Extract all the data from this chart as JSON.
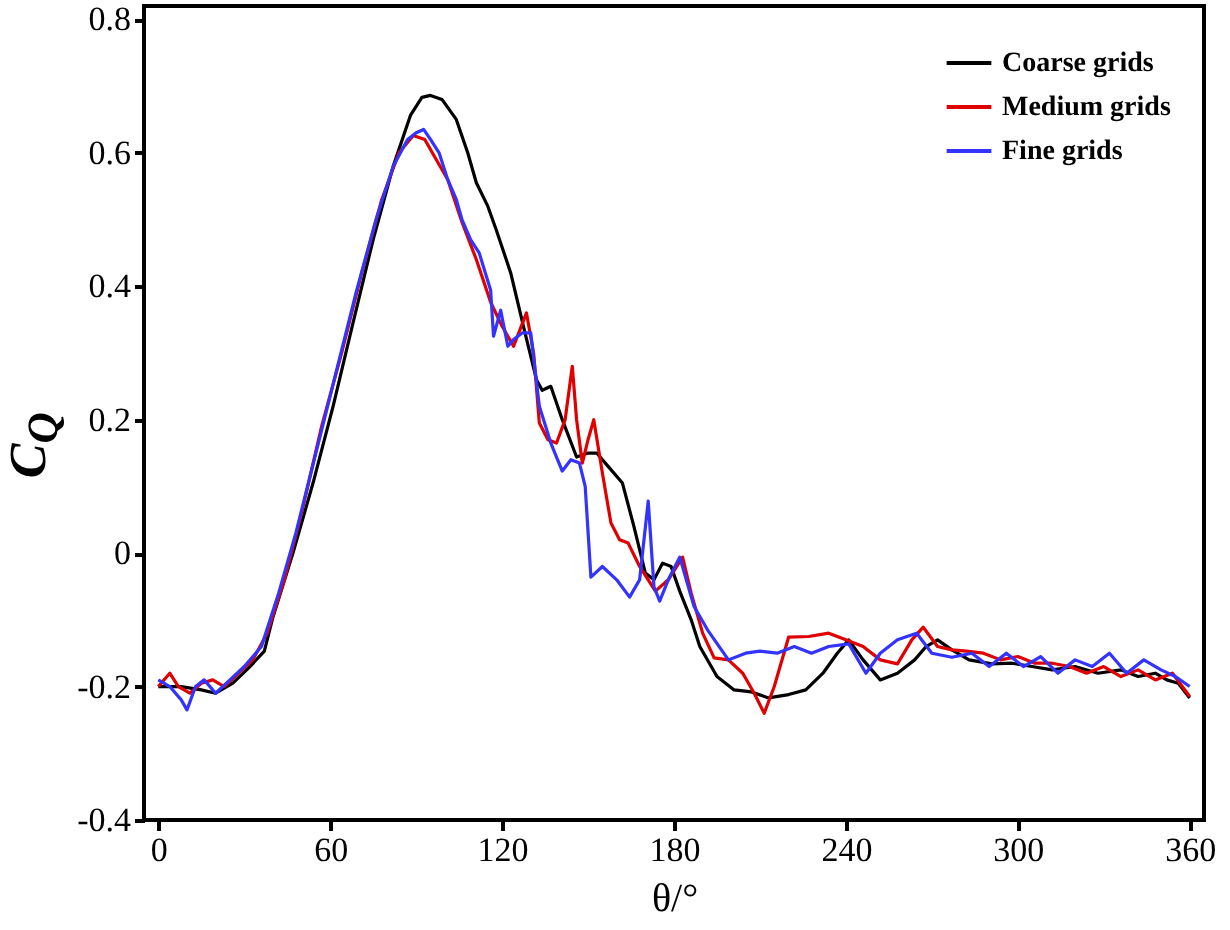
{
  "chart_data": {
    "type": "line",
    "xlabel": "θ/°",
    "ylabel": "C$_{Q}$",
    "xlim": [
      -5,
      365
    ],
    "ylim": [
      -0.4,
      0.82
    ],
    "xticks": [
      0,
      60,
      120,
      180,
      240,
      300,
      360
    ],
    "yticks": [
      -0.4,
      -0.2,
      0,
      0.2,
      0.4,
      0.6,
      0.8
    ],
    "grid": false,
    "legend": "top right",
    "series": [
      {
        "name": "Coarse grids",
        "color": "#000000",
        "x": [
          0,
          8,
          15,
          20,
          26,
          32,
          37,
          40,
          47,
          54,
          61,
          68,
          75,
          82,
          88,
          92,
          95,
          99,
          104,
          108,
          111,
          115,
          118,
          123,
          128,
          132,
          134,
          137,
          141,
          146,
          150,
          153,
          157,
          162,
          166,
          170,
          173,
          176,
          179,
          182,
          186,
          189,
          195,
          201,
          207,
          213,
          220,
          226,
          232,
          237,
          241,
          246,
          252,
          258,
          264,
          268,
          272,
          277,
          283,
          291,
          298,
          305,
          312,
          320,
          328,
          336,
          342,
          348,
          352,
          356,
          360
        ],
        "values": [
          -0.2,
          -0.2,
          -0.205,
          -0.21,
          -0.195,
          -0.17,
          -0.147,
          -0.096,
          0.0,
          0.105,
          0.22,
          0.346,
          0.47,
          0.58,
          0.656,
          0.683,
          0.686,
          0.68,
          0.65,
          0.6,
          0.555,
          0.52,
          0.484,
          0.42,
          0.33,
          0.26,
          0.244,
          0.25,
          0.2,
          0.144,
          0.15,
          0.15,
          0.13,
          0.105,
          0.04,
          -0.03,
          -0.04,
          -0.015,
          -0.02,
          -0.057,
          -0.1,
          -0.14,
          -0.185,
          -0.205,
          -0.208,
          -0.217,
          -0.212,
          -0.205,
          -0.18,
          -0.15,
          -0.13,
          -0.16,
          -0.19,
          -0.18,
          -0.16,
          -0.14,
          -0.13,
          -0.145,
          -0.16,
          -0.166,
          -0.165,
          -0.17,
          -0.175,
          -0.17,
          -0.18,
          -0.175,
          -0.185,
          -0.18,
          -0.19,
          -0.195,
          -0.217
        ]
      },
      {
        "name": "Medium grids",
        "color": "#e00000",
        "x": [
          0,
          4,
          7,
          11,
          15,
          19,
          23,
          28,
          33,
          38,
          44,
          50,
          57,
          64,
          71,
          78,
          84,
          89,
          93,
          97,
          101,
          106,
          111,
          116,
          120,
          124,
          128.5,
          131,
          133,
          136,
          139,
          142,
          144.5,
          146,
          148,
          150,
          152,
          155,
          158,
          161,
          164,
          168,
          173.5,
          178,
          183,
          186,
          190,
          194,
          199,
          204,
          208,
          211.5,
          215,
          220,
          227,
          234,
          240,
          246,
          252,
          258,
          263,
          267,
          272,
          277,
          282,
          288,
          294,
          300,
          306,
          312,
          318,
          324,
          330,
          336,
          342,
          348,
          354,
          360
        ],
        "values": [
          -0.2,
          -0.18,
          -0.2,
          -0.21,
          -0.195,
          -0.19,
          -0.2,
          -0.18,
          -0.16,
          -0.12,
          -0.04,
          0.06,
          0.19,
          0.3,
          0.42,
          0.53,
          0.6,
          0.626,
          0.62,
          0.59,
          0.56,
          0.496,
          0.44,
          0.376,
          0.34,
          0.31,
          0.36,
          0.3,
          0.195,
          0.17,
          0.165,
          0.2,
          0.28,
          0.2,
          0.135,
          0.17,
          0.2,
          0.12,
          0.045,
          0.02,
          0.015,
          -0.02,
          -0.057,
          -0.04,
          -0.006,
          -0.06,
          -0.12,
          -0.157,
          -0.16,
          -0.18,
          -0.21,
          -0.24,
          -0.2,
          -0.126,
          -0.125,
          -0.12,
          -0.13,
          -0.14,
          -0.16,
          -0.166,
          -0.13,
          -0.111,
          -0.14,
          -0.145,
          -0.147,
          -0.15,
          -0.16,
          -0.155,
          -0.165,
          -0.165,
          -0.17,
          -0.18,
          -0.17,
          -0.185,
          -0.175,
          -0.19,
          -0.18,
          -0.215
        ]
      },
      {
        "name": "Fine grids",
        "color": "#3333ff",
        "x": [
          0,
          4,
          8,
          10,
          13,
          16,
          20,
          25,
          30,
          36,
          42,
          48,
          55,
          62,
          69,
          76,
          82,
          87,
          90,
          92.6,
          95,
          98,
          101,
          104,
          106,
          109,
          112,
          116,
          117,
          119.5,
          122,
          124,
          127,
          130,
          133,
          137,
          141,
          144,
          147,
          149,
          151,
          155,
          160,
          164.5,
          168,
          171,
          173,
          175,
          178,
          182,
          187,
          192,
          199,
          205,
          210,
          216,
          222,
          228,
          234,
          241,
          247,
          252,
          258,
          264.7,
          270,
          277,
          284,
          290,
          296,
          302,
          308,
          314,
          320,
          326,
          332,
          338,
          344,
          350,
          355,
          360
        ],
        "values": [
          -0.19,
          -0.2,
          -0.22,
          -0.235,
          -0.2,
          -0.19,
          -0.21,
          -0.19,
          -0.17,
          -0.14,
          -0.06,
          0.03,
          0.15,
          0.27,
          0.39,
          0.5,
          0.58,
          0.62,
          0.63,
          0.635,
          0.62,
          0.6,
          0.56,
          0.53,
          0.5,
          0.47,
          0.45,
          0.394,
          0.325,
          0.364,
          0.31,
          0.32,
          0.33,
          0.33,
          0.22,
          0.165,
          0.123,
          0.14,
          0.135,
          0.1,
          -0.036,
          -0.02,
          -0.04,
          -0.066,
          -0.04,
          0.078,
          -0.05,
          -0.072,
          -0.04,
          -0.006,
          -0.08,
          -0.117,
          -0.16,
          -0.15,
          -0.147,
          -0.15,
          -0.14,
          -0.15,
          -0.14,
          -0.136,
          -0.18,
          -0.15,
          -0.13,
          -0.12,
          -0.15,
          -0.156,
          -0.15,
          -0.17,
          -0.15,
          -0.17,
          -0.155,
          -0.18,
          -0.16,
          -0.17,
          -0.15,
          -0.18,
          -0.16,
          -0.175,
          -0.185,
          -0.2
        ]
      }
    ]
  }
}
